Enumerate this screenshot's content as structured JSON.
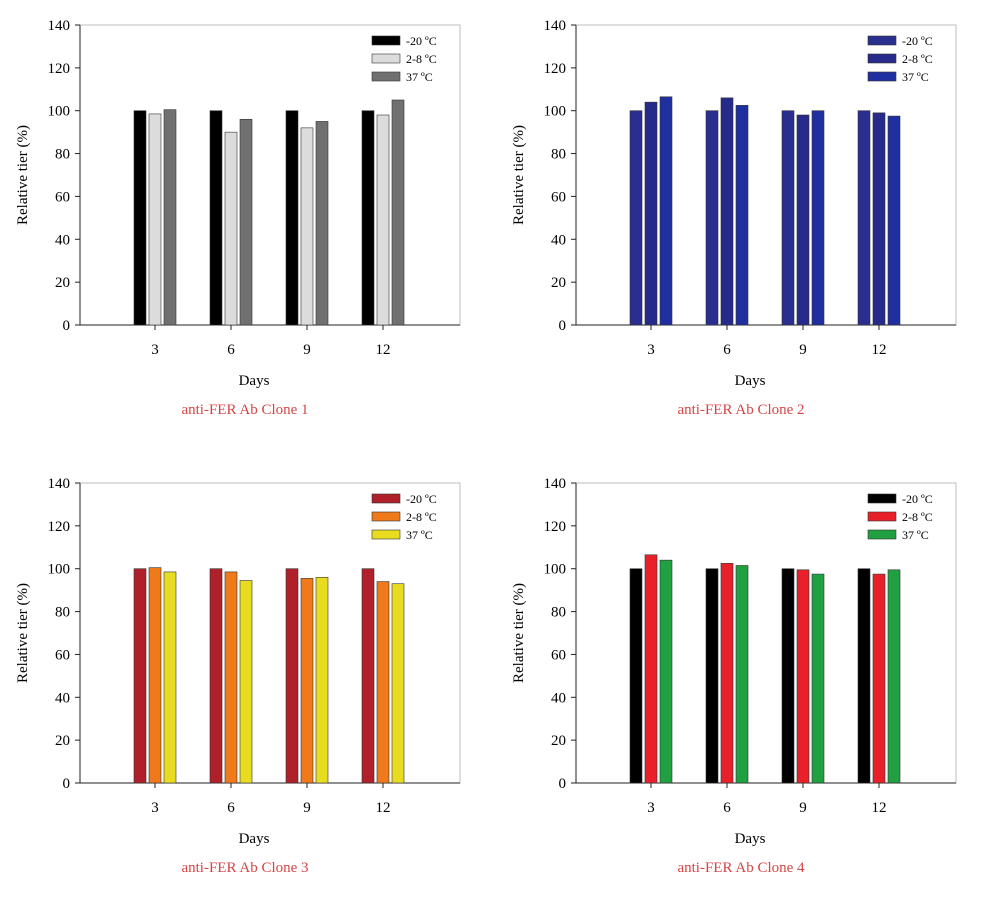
{
  "chart_data": [
    {
      "type": "bar",
      "title": "anti-FER Ab Clone  1",
      "xlabel": "Days",
      "ylabel": "Relative tier (%)",
      "ylim": [
        0,
        140
      ],
      "yticks": [
        0,
        20,
        40,
        60,
        80,
        100,
        120,
        140
      ],
      "categories": [
        "3",
        "6",
        "9",
        "12"
      ],
      "legend_position": "top-right",
      "series": [
        {
          "name": "-20 ºC",
          "color": "#000000",
          "values": [
            100,
            100,
            100,
            100
          ]
        },
        {
          "name": "2-8 ºC",
          "color": "#dcdcdc",
          "values": [
            98.5,
            90,
            92,
            98
          ]
        },
        {
          "name": "37 ºC",
          "color": "#707070",
          "values": [
            100.5,
            96,
            95,
            105
          ]
        }
      ]
    },
    {
      "type": "bar",
      "title": "anti-FER Ab Clone  2",
      "xlabel": "Days",
      "ylabel": "Relative tier (%)",
      "ylim": [
        0,
        140
      ],
      "yticks": [
        0,
        20,
        40,
        60,
        80,
        100,
        120,
        140
      ],
      "categories": [
        "3",
        "6",
        "9",
        "12"
      ],
      "legend_position": "top-right",
      "series": [
        {
          "name": "-20 ºC",
          "color": "#2a2f8f",
          "values": [
            100,
            100,
            100,
            100
          ]
        },
        {
          "name": "2-8 ºC",
          "color": "#262a8a",
          "values": [
            104,
            106,
            98,
            99
          ]
        },
        {
          "name": "37 ºC",
          "color": "#1f2fa0",
          "values": [
            106.5,
            102.5,
            100,
            97.5
          ]
        }
      ]
    },
    {
      "type": "bar",
      "title": "anti-FER Ab Clone 3",
      "xlabel": "Days",
      "ylabel": "Relative tier (%)",
      "ylim": [
        0,
        140
      ],
      "yticks": [
        0,
        20,
        40,
        60,
        80,
        100,
        120,
        140
      ],
      "categories": [
        "3",
        "6",
        "9",
        "12"
      ],
      "legend_position": "top-right",
      "series": [
        {
          "name": "-20 ºC",
          "color": "#b0202a",
          "values": [
            100,
            100,
            100,
            100
          ]
        },
        {
          "name": "2-8 ºC",
          "color": "#f07a1a",
          "values": [
            100.5,
            98.5,
            95.5,
            94
          ]
        },
        {
          "name": "37 ºC",
          "color": "#e8dc20",
          "values": [
            98.5,
            94.5,
            96,
            93
          ]
        }
      ]
    },
    {
      "type": "bar",
      "title": "anti-FER Ab Clone  4",
      "xlabel": "Days",
      "ylabel": "Relative tier (%)",
      "ylim": [
        0,
        140
      ],
      "yticks": [
        0,
        20,
        40,
        60,
        80,
        100,
        120,
        140
      ],
      "categories": [
        "3",
        "6",
        "9",
        "12"
      ],
      "legend_position": "top-right",
      "series": [
        {
          "name": "-20 ºC",
          "color": "#000000",
          "values": [
            100,
            100,
            100,
            100
          ]
        },
        {
          "name": "2-8 ºC",
          "color": "#e8202a",
          "values": [
            106.5,
            102.5,
            99.5,
            97.5
          ]
        },
        {
          "name": "37 ºC",
          "color": "#20a040",
          "values": [
            104,
            101.5,
            97.5,
            99.5
          ]
        }
      ]
    }
  ]
}
